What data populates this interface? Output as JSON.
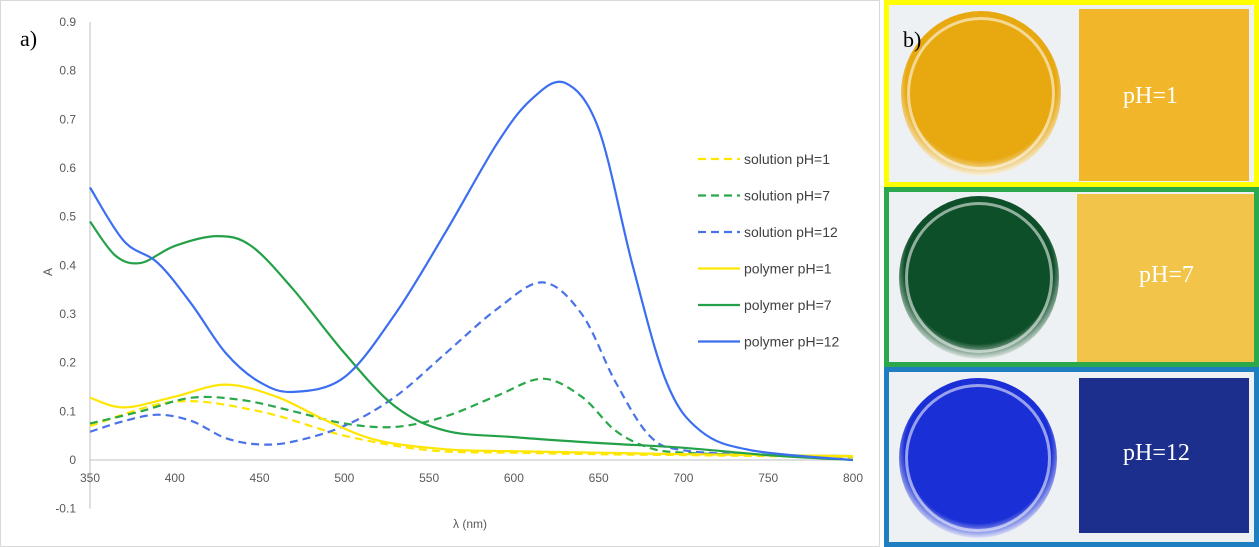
{
  "panel_a_label": "a)",
  "panel_b_label": "b)",
  "chart_data": {
    "type": "line",
    "xlabel": "λ (nm)",
    "ylabel": "A",
    "xlim": [
      350,
      800
    ],
    "ylim": [
      -0.1,
      0.9
    ],
    "x_ticks": [
      350,
      400,
      450,
      500,
      550,
      600,
      650,
      700,
      750,
      800
    ],
    "y_ticks": [
      -0.1,
      0,
      0.1,
      0.2,
      0.3,
      0.4,
      0.5,
      0.6,
      0.7,
      0.8,
      0.9
    ],
    "grid": false,
    "legend_position": "right",
    "series": [
      {
        "name": "solution pH=1",
        "color": "#ffe600",
        "dash": true,
        "x": [
          350,
          400,
          450,
          500,
          550,
          600,
          650,
          700,
          750,
          800
        ],
        "y": [
          0.07,
          0.12,
          0.1,
          0.05,
          0.02,
          0.015,
          0.012,
          0.01,
          0.008,
          0.005
        ]
      },
      {
        "name": "solution pH=7",
        "color": "#2ba84a",
        "dash": true,
        "x": [
          350,
          380,
          410,
          440,
          470,
          500,
          530,
          560,
          590,
          617,
          640,
          660,
          680,
          700,
          750,
          800
        ],
        "y": [
          0.075,
          0.1,
          0.128,
          0.123,
          0.1,
          0.075,
          0.068,
          0.09,
          0.132,
          0.167,
          0.13,
          0.06,
          0.025,
          0.015,
          0.01,
          0.008
        ]
      },
      {
        "name": "solution pH=12",
        "color": "#4a73e8",
        "dash": true,
        "x": [
          350,
          370,
          390,
          410,
          430,
          450,
          470,
          500,
          530,
          560,
          590,
          617,
          640,
          660,
          680,
          700,
          750,
          800
        ],
        "y": [
          0.058,
          0.08,
          0.093,
          0.08,
          0.045,
          0.032,
          0.038,
          0.07,
          0.13,
          0.22,
          0.31,
          0.365,
          0.3,
          0.16,
          0.05,
          0.02,
          0.01,
          0.008
        ]
      },
      {
        "name": "polymer pH=1",
        "color": "#ffe600",
        "dash": false,
        "x": [
          350,
          370,
          400,
          430,
          460,
          490,
          520,
          560,
          600,
          650,
          700,
          750,
          800
        ],
        "y": [
          0.128,
          0.108,
          0.13,
          0.155,
          0.13,
          0.08,
          0.04,
          0.022,
          0.018,
          0.015,
          0.012,
          0.01,
          0.008
        ]
      },
      {
        "name": "polymer pH=7",
        "color": "#24a148",
        "dash": false,
        "x": [
          350,
          365,
          380,
          400,
          425,
          445,
          470,
          500,
          530,
          560,
          600,
          650,
          700,
          750,
          800
        ],
        "y": [
          0.49,
          0.42,
          0.405,
          0.44,
          0.46,
          0.44,
          0.35,
          0.22,
          0.11,
          0.06,
          0.047,
          0.035,
          0.025,
          0.01,
          0.0
        ]
      },
      {
        "name": "polymer pH=12",
        "color": "#3b6ef0",
        "dash": false,
        "x": [
          350,
          370,
          390,
          410,
          430,
          450,
          470,
          500,
          530,
          560,
          590,
          610,
          630,
          650,
          670,
          690,
          710,
          740,
          800
        ],
        "y": [
          0.56,
          0.45,
          0.405,
          0.32,
          0.22,
          0.16,
          0.14,
          0.17,
          0.3,
          0.47,
          0.65,
          0.74,
          0.775,
          0.68,
          0.4,
          0.16,
          0.06,
          0.02,
          0.0
        ]
      }
    ]
  },
  "photos": [
    {
      "label": "pH=1",
      "border_color": "#ffff00",
      "solution_color": "#e7a810",
      "film_color": "#f1b62a"
    },
    {
      "label": "pH=7",
      "border_color": "#2ca84c",
      "solution_color": "#0d4f28",
      "film_color": "#f2c54a"
    },
    {
      "label": "pH=12",
      "border_color": "#1f7ec0",
      "solution_color": "#1a2fd6",
      "film_color": "#1c2f8c"
    }
  ]
}
